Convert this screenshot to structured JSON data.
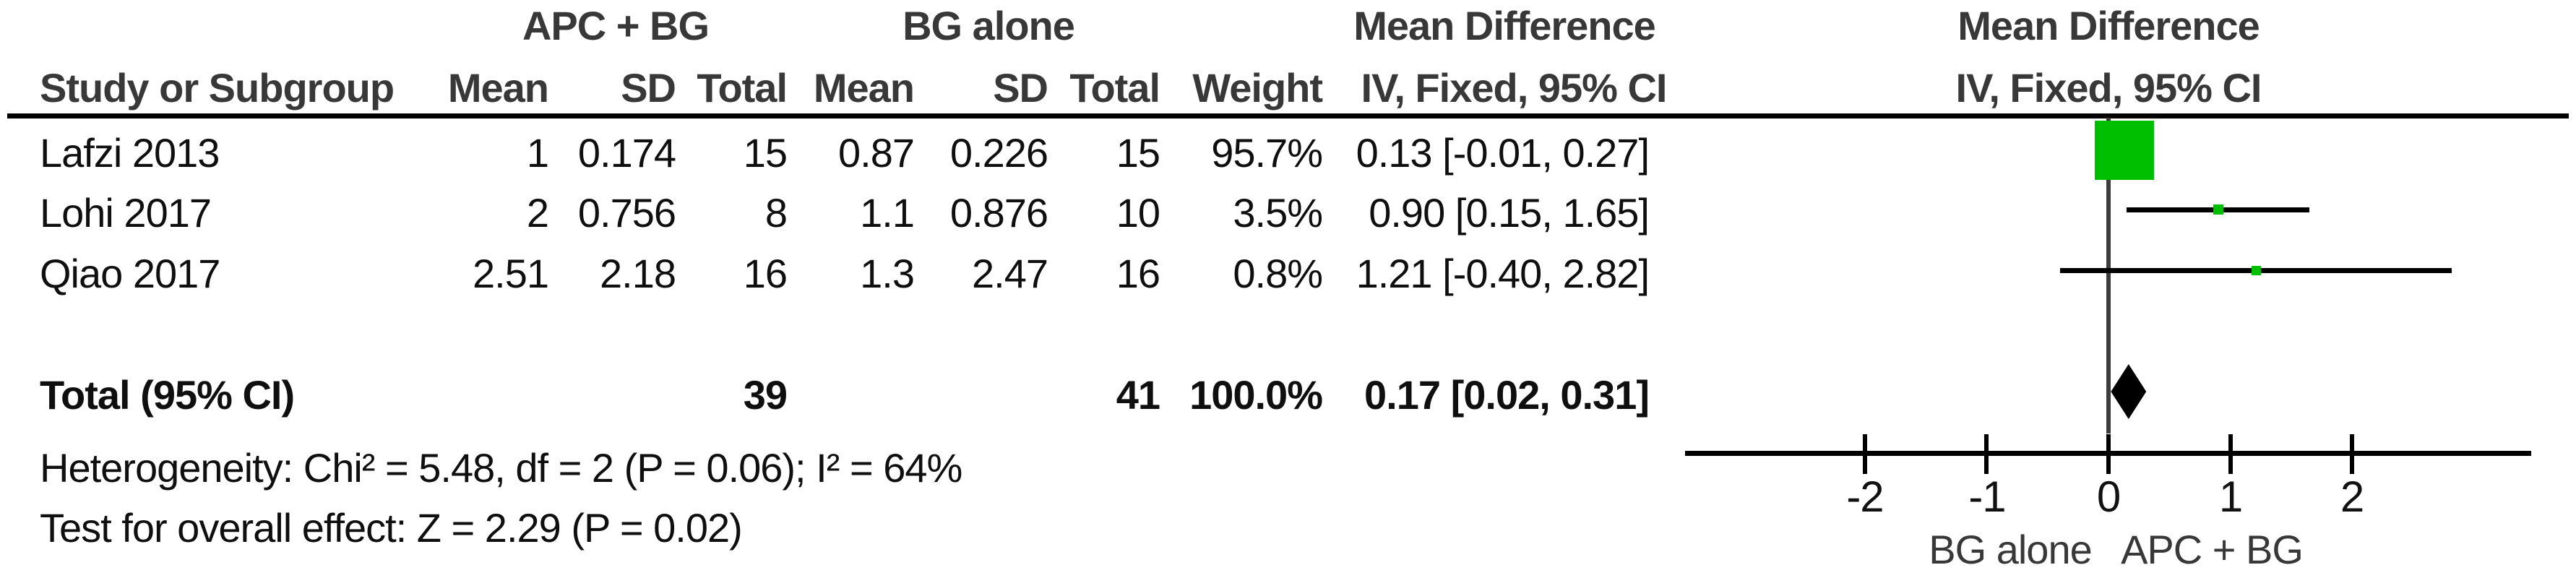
{
  "table": {
    "group_headers": {
      "experimental": "APC + BG",
      "control": "BG alone",
      "effect_left": "Mean Difference",
      "effect_right": "Mean Difference"
    },
    "col_headers": {
      "study": "Study or Subgroup",
      "mean1": "Mean",
      "sd1": "SD",
      "total1": "Total",
      "mean2": "Mean",
      "sd2": "SD",
      "total2": "Total",
      "weight": "Weight",
      "ci_left": "IV, Fixed, 95% CI",
      "ci_right": "IV, Fixed, 95% CI"
    },
    "rows": [
      {
        "study": "Lafzi 2013",
        "mean1": "1",
        "sd1": "0.174",
        "total1": "15",
        "mean2": "0.87",
        "sd2": "0.226",
        "total2": "15",
        "weight": "95.7%",
        "ci": "0.13 [-0.01, 0.27]"
      },
      {
        "study": "Lohi 2017",
        "mean1": "2",
        "sd1": "0.756",
        "total1": "8",
        "mean2": "1.1",
        "sd2": "0.876",
        "total2": "10",
        "weight": "3.5%",
        "ci": "0.90 [0.15, 1.65]"
      },
      {
        "study": "Qiao 2017",
        "mean1": "2.51",
        "sd1": "2.18",
        "total1": "16",
        "mean2": "1.3",
        "sd2": "2.47",
        "total2": "16",
        "weight": "0.8%",
        "ci": "1.21 [-0.40, 2.82]"
      }
    ],
    "total_row": {
      "label": "Total (95% CI)",
      "total1": "39",
      "total2": "41",
      "weight": "100.0%",
      "ci": "0.17 [0.02, 0.31]"
    },
    "heterogeneity": "Heterogeneity: Chi² = 5.48, df = 2 (P = 0.06); I² = 64%",
    "overall_effect": "Test for overall effect: Z = 2.29 (P = 0.02)"
  },
  "chart_data": {
    "type": "forest",
    "effect_measure": "Mean Difference, IV, Fixed, 95% CI",
    "x_ticks": [
      -2,
      -1,
      0,
      1,
      2
    ],
    "x_tick_labels": [
      "-2",
      "-1",
      "0",
      "1",
      "2"
    ],
    "xlim": [
      -3.5,
      3.5
    ],
    "zero_line": 0,
    "studies": [
      {
        "name": "Lafzi 2013",
        "md": 0.13,
        "ci_low": -0.01,
        "ci_high": 0.27,
        "weight_pct": 95.7
      },
      {
        "name": "Lohi 2017",
        "md": 0.9,
        "ci_low": 0.15,
        "ci_high": 1.65,
        "weight_pct": 3.5
      },
      {
        "name": "Qiao 2017",
        "md": 1.21,
        "ci_low": -0.4,
        "ci_high": 2.82,
        "weight_pct": 0.8
      }
    ],
    "total": {
      "md": 0.17,
      "ci_low": 0.02,
      "ci_high": 0.31,
      "weight_pct": 100.0
    },
    "favours_left": "BG alone",
    "favours_right": "APC + BG",
    "marker_color": "#00BE00",
    "diamond_color": "#000000"
  }
}
